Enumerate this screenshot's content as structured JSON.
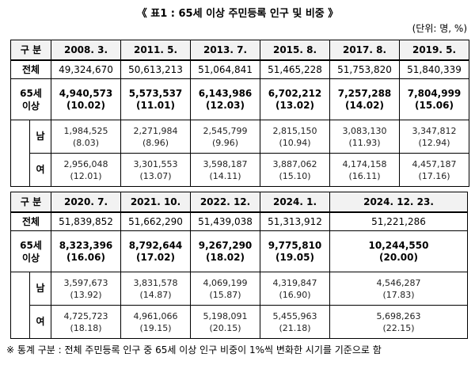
{
  "title": "《 표1 : 65세 이상 주민등록 인구 및 비중 》",
  "unit": "(단위: 명, %)",
  "tables": [
    {
      "header": {
        "label": "구 분",
        "columns": [
          "2008. 3.",
          "2011. 5.",
          "2013. 7.",
          "2015. 8.",
          "2017. 8.",
          "2019. 5."
        ]
      },
      "total": {
        "label": "전체",
        "values": [
          "49,324,670",
          "50,613,213",
          "51,064,841",
          "51,465,228",
          "51,753,820",
          "51,840,339"
        ]
      },
      "elderly": {
        "label": "65세 이상",
        "values": [
          "4,940,573",
          "5,573,537",
          "6,143,986",
          "6,702,212",
          "7,257,288",
          "7,804,999"
        ],
        "ratios": [
          "(10.02)",
          "(11.01)",
          "(12.03)",
          "(13.02)",
          "(14.02)",
          "(15.06)"
        ]
      },
      "male": {
        "label": "남",
        "values": [
          "1,984,525",
          "2,271,984",
          "2,545,799",
          "2,815,150",
          "3,083,130",
          "3,347,812"
        ],
        "ratios": [
          "(8.03)",
          "(8.96)",
          "(9.96)",
          "(10.94)",
          "(11.93)",
          "(12.94)"
        ]
      },
      "female": {
        "label": "여",
        "values": [
          "2,956,048",
          "3,301,553",
          "3,598,187",
          "3,887,062",
          "4,174,158",
          "4,457,187"
        ],
        "ratios": [
          "(12.01)",
          "(13.07)",
          "(14.11)",
          "(15.10)",
          "(16.11)",
          "(17.16)"
        ]
      }
    },
    {
      "header": {
        "label": "구 분",
        "columns": [
          "2020. 7.",
          "2021. 10.",
          "2022. 12.",
          "2024. 1.",
          "2024. 12. 23."
        ]
      },
      "total": {
        "label": "전체",
        "values": [
          "51,839,852",
          "51,662,290",
          "51,439,038",
          "51,313,912",
          "51,221,286"
        ]
      },
      "elderly": {
        "label": "65세 이상",
        "values": [
          "8,323,396",
          "8,792,644",
          "9,267,290",
          "9,775,810",
          "10,244,550"
        ],
        "ratios": [
          "(16.06)",
          "(17.02)",
          "(18.02)",
          "(19.05)",
          "(20.00)"
        ]
      },
      "male": {
        "label": "남",
        "values": [
          "3,597,673",
          "3,831,578",
          "4,069,199",
          "4,319,847",
          "4,546,287"
        ],
        "ratios": [
          "(13.92)",
          "(14.87)",
          "(15.87)",
          "(16.90)",
          "(17.83)"
        ]
      },
      "female": {
        "label": "여",
        "values": [
          "4,725,723",
          "4,961,066",
          "5,198,091",
          "5,455,963",
          "5,698,263"
        ],
        "ratios": [
          "(18.18)",
          "(19.15)",
          "(20.15)",
          "(21.18)",
          "(22.15)"
        ]
      }
    }
  ],
  "footnote": "※ 통계 구분 : 전체 주민등록 인구 중 65세 이상 인구 비중이 1%씩 변화한 시기를 기준으로 함"
}
